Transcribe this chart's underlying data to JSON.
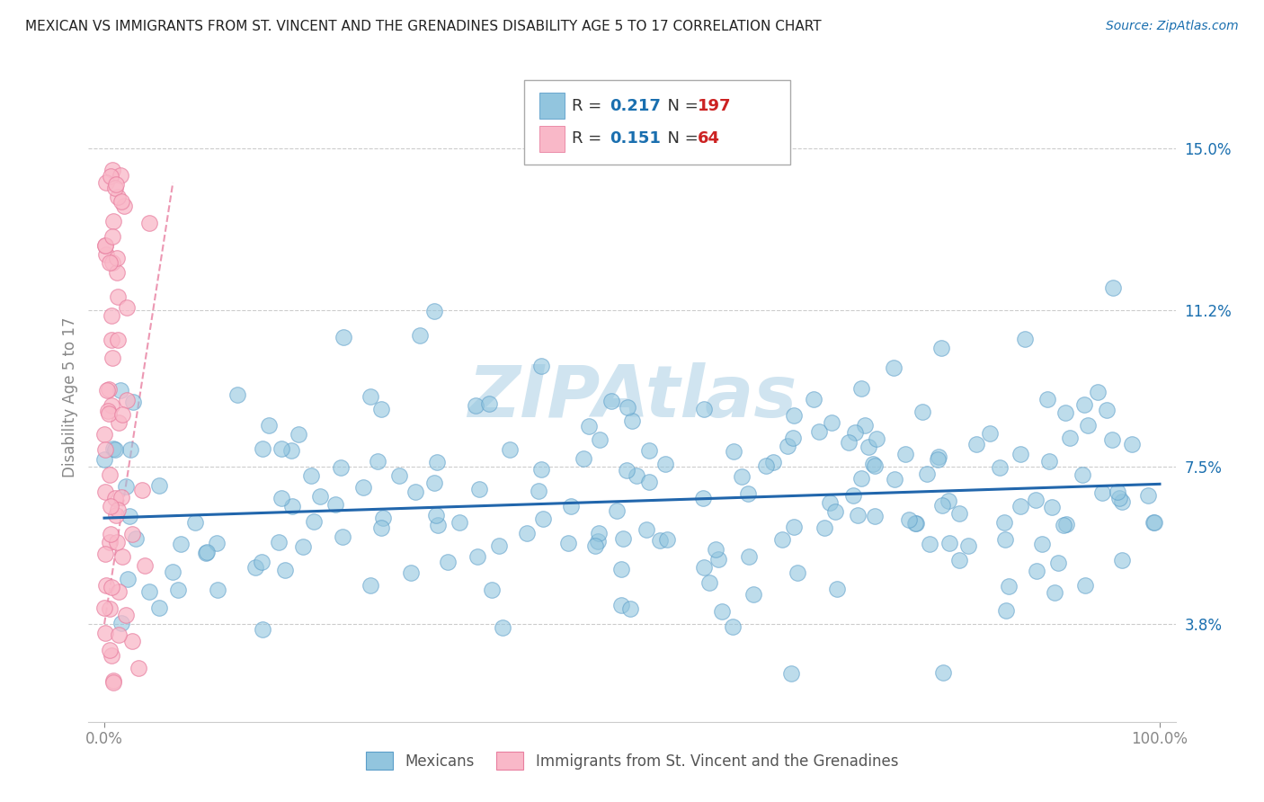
{
  "title": "MEXICAN VS IMMIGRANTS FROM ST. VINCENT AND THE GRENADINES DISABILITY AGE 5 TO 17 CORRELATION CHART",
  "source": "Source: ZipAtlas.com",
  "ylabel": "Disability Age 5 to 17",
  "yticks": [
    0.038,
    0.075,
    0.112,
    0.15
  ],
  "ytick_labels": [
    "3.8%",
    "7.5%",
    "11.2%",
    "15.0%"
  ],
  "xlim": [
    -0.015,
    1.015
  ],
  "ylim": [
    0.015,
    0.168
  ],
  "mexican_R": 0.217,
  "mexican_N": 197,
  "svg_R": 0.151,
  "svg_N": 64,
  "blue_color": "#92c5de",
  "blue_edge_color": "#5b9ec9",
  "pink_color": "#f9b8c8",
  "pink_edge_color": "#e87fa0",
  "trend_blue_color": "#2166ac",
  "trend_pink_color": "#e87fa0",
  "ref_line_color": "#cccccc",
  "watermark_color": "#d0e4f0",
  "legend_R_color": "#1a6faf",
  "legend_N_color": "#cc2222",
  "background_color": "#ffffff",
  "grid_color": "#cccccc",
  "title_color": "#222222",
  "axis_color": "#888888",
  "tick_label_color": "#1a6faf"
}
